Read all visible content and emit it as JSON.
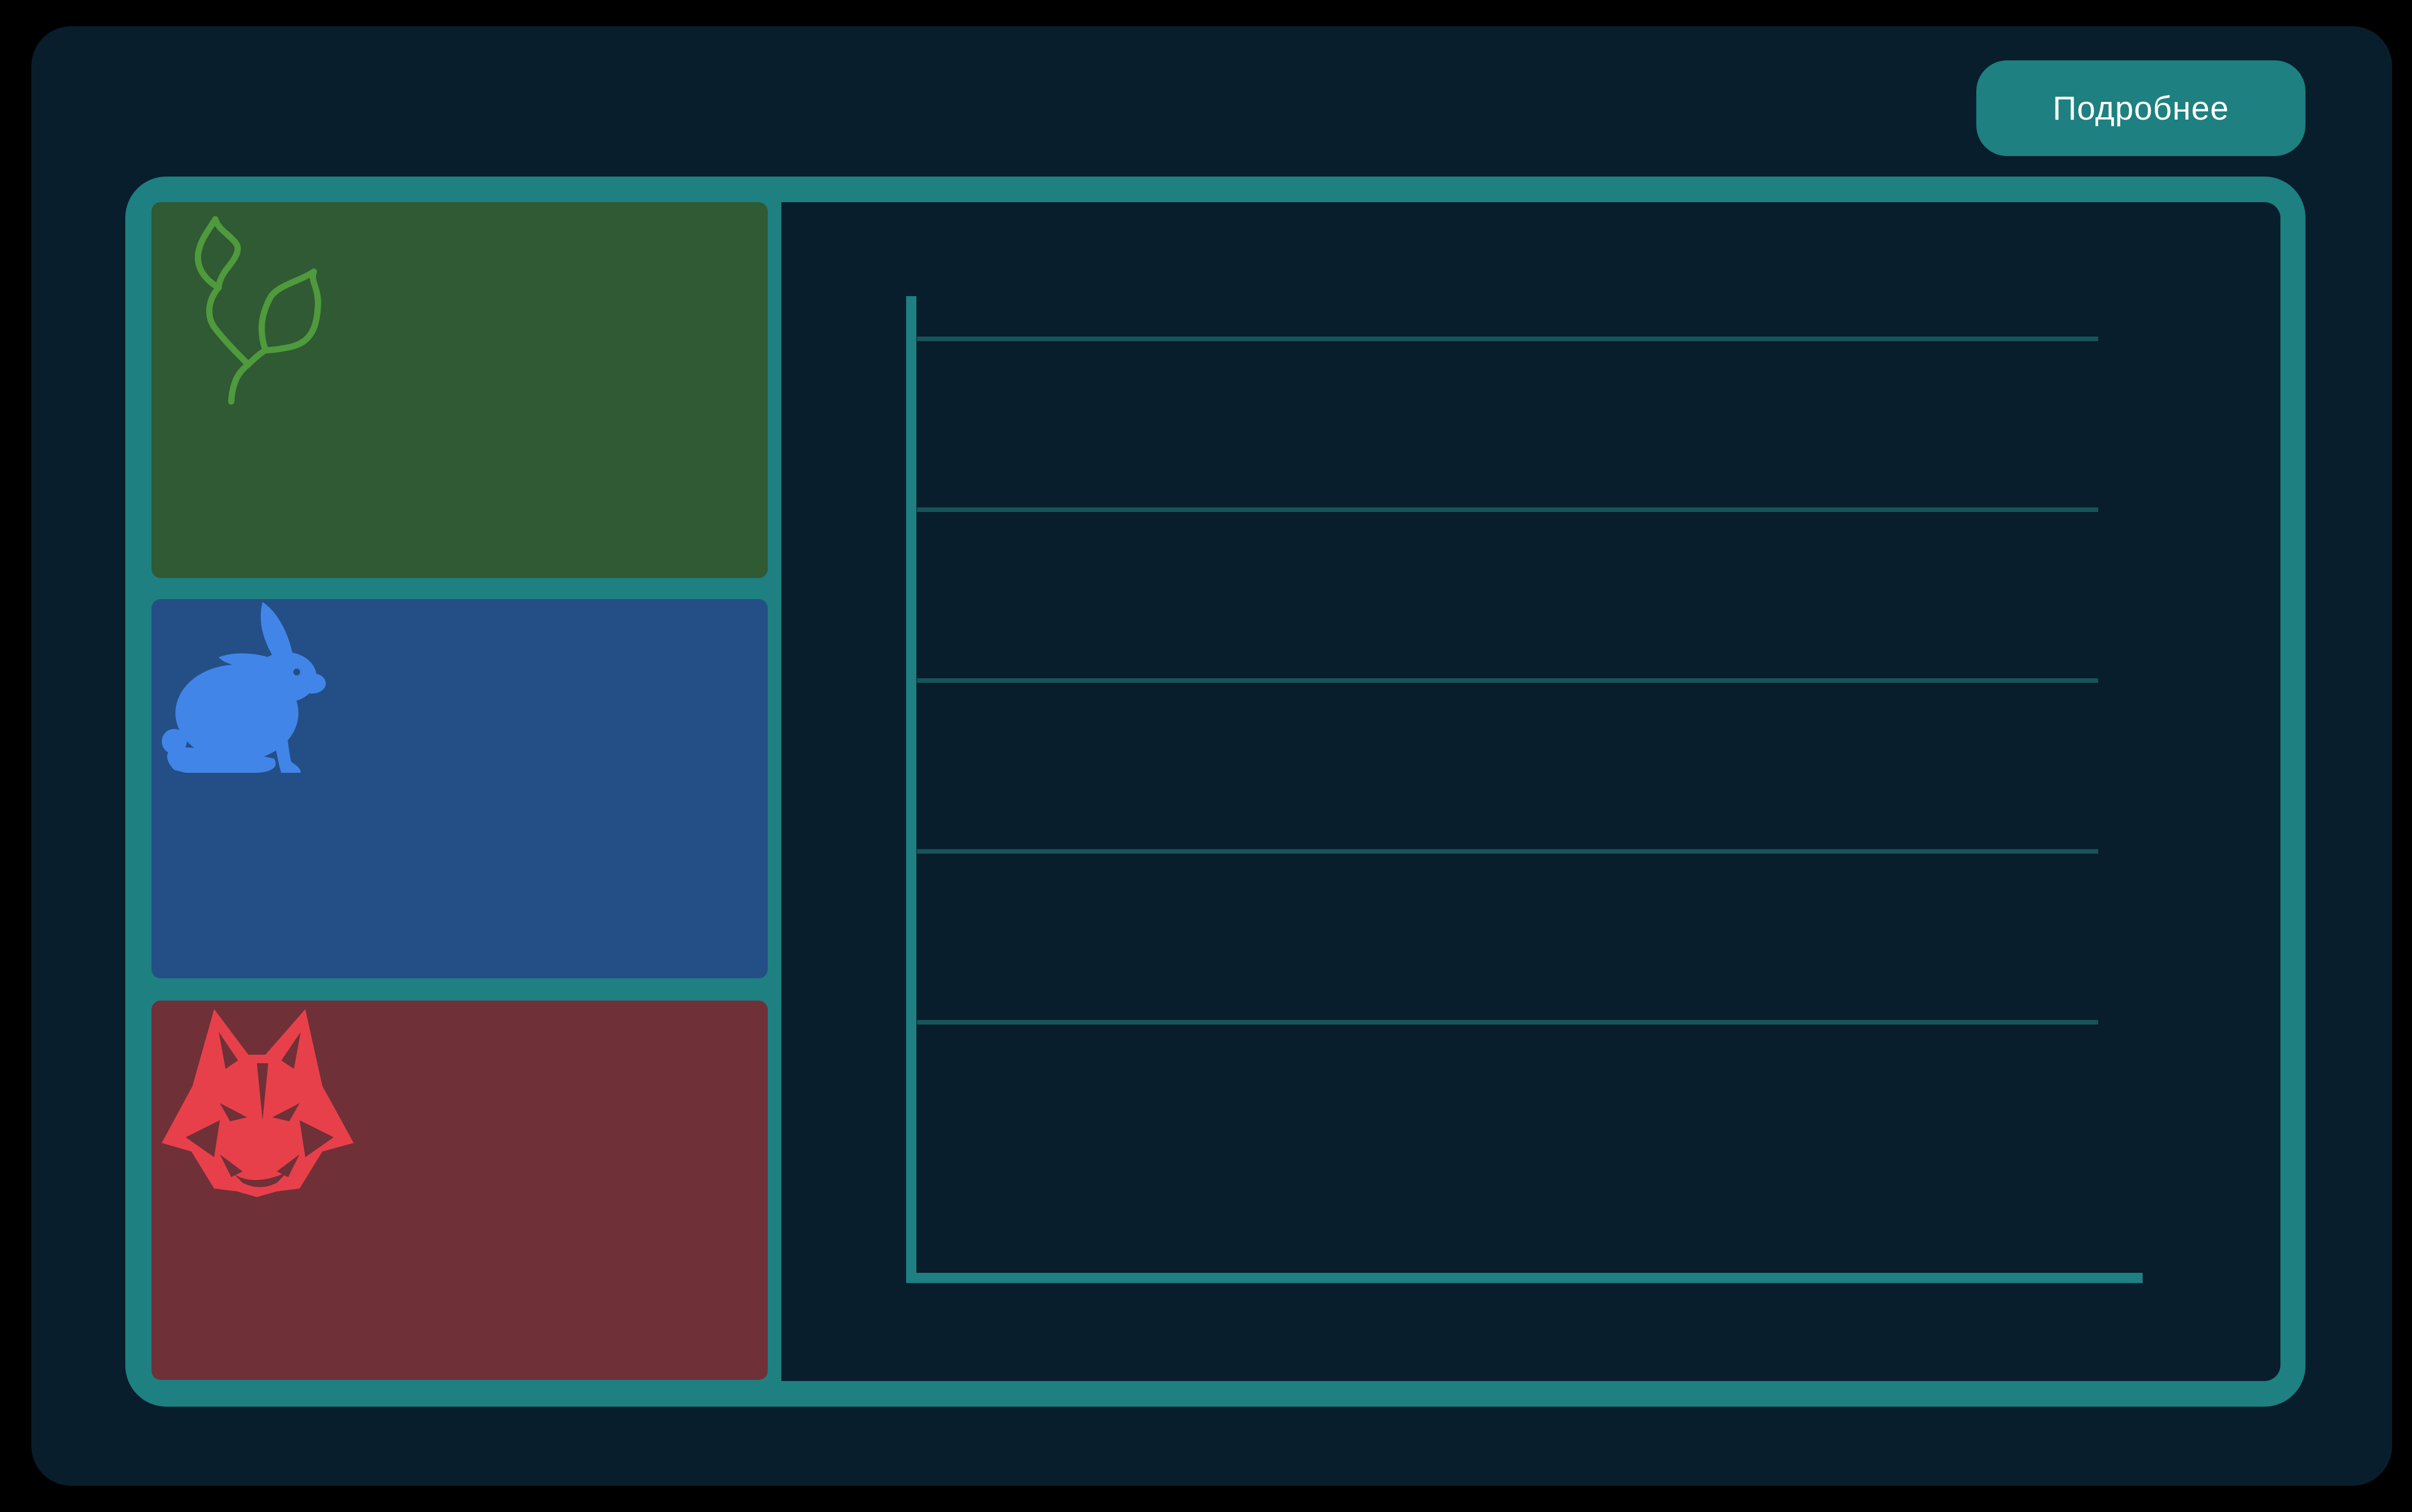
{
  "header": {
    "more_button_label": "Подробнее"
  },
  "cards": {
    "plants": {
      "icon": "leaf-sprig-icon",
      "color": "#2f5a34",
      "icon_color": "#4f9a3c"
    },
    "herbivores": {
      "icon": "rabbit-icon",
      "color": "#234f86",
      "icon_color": "#4285e8"
    },
    "predators": {
      "icon": "wolf-head-icon",
      "color": "#6f3038",
      "icon_color": "#e8404a"
    }
  },
  "colors": {
    "background": "#081e2c",
    "accent": "#1e8080",
    "gridline": "#17545a"
  },
  "chart_data": {
    "type": "line",
    "series": [],
    "gridlines": 5,
    "grid": true
  }
}
